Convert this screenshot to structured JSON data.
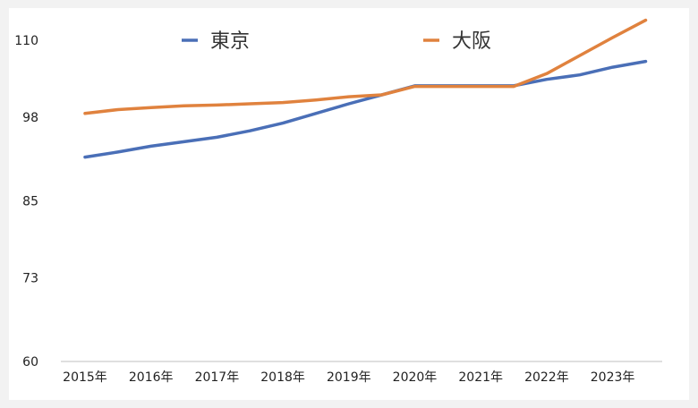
{
  "chart_data": {
    "type": "line",
    "categories": [
      "2015年",
      "2016年",
      "2017年",
      "2018年",
      "2019年",
      "2020年",
      "2021年",
      "2022年",
      "2023年"
    ],
    "x": [
      2015,
      2015.5,
      2016,
      2016.5,
      2017,
      2017.5,
      2018,
      2018.5,
      2019,
      2019.5,
      2020,
      2020.5,
      2021,
      2021.5,
      2022,
      2022.5,
      2023,
      2023.5
    ],
    "series": [
      {
        "name": "東京",
        "color": "#4a6fb7",
        "values": [
          91.8,
          92.6,
          93.5,
          94.2,
          94.9,
          95.9,
          97.1,
          98.6,
          100.1,
          101.5,
          102.9,
          102.9,
          102.9,
          102.9,
          103.9,
          104.6,
          105.8,
          106.7
        ]
      },
      {
        "name": "大阪",
        "color": "#e0823e",
        "values": [
          98.6,
          99.2,
          99.5,
          99.8,
          99.9,
          100.1,
          100.3,
          100.7,
          101.2,
          101.5,
          102.8,
          102.8,
          102.8,
          102.8,
          104.8,
          107.6,
          110.4,
          113.1
        ]
      }
    ],
    "yticks": [
      60,
      73,
      85,
      98,
      110
    ],
    "ylim": [
      60,
      115
    ],
    "title": "",
    "xlabel": "",
    "ylabel": "",
    "legend_position": "top",
    "grid": false
  }
}
